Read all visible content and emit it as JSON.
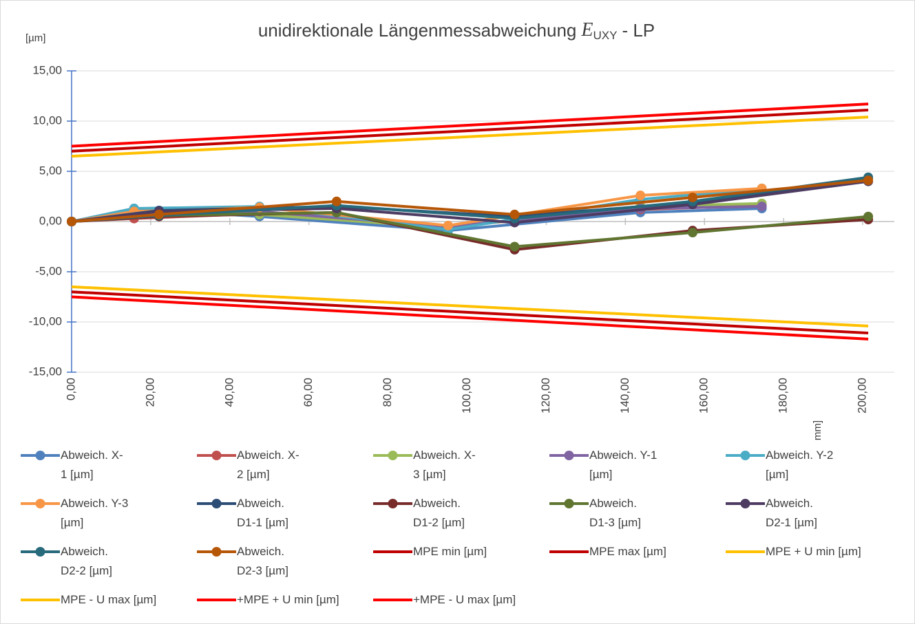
{
  "chart_data": {
    "type": "line",
    "title": "unidirektionale Längenmessabweichung",
    "title_symbol": "E",
    "title_subscript": "UXY",
    "title_suffix": "- LP",
    "y_unit_label": "[µm]",
    "x_unit_label": "[mm]",
    "xlim": [
      0,
      208
    ],
    "xticks": [
      {
        "value": 0,
        "label": "0,00"
      },
      {
        "value": 20,
        "label": "20,00"
      },
      {
        "value": 40,
        "label": "40,00"
      },
      {
        "value": 60,
        "label": "60,00"
      },
      {
        "value": 80,
        "label": "80,00"
      },
      {
        "value": 100,
        "label": "100,00"
      },
      {
        "value": 120,
        "label": "120,00"
      },
      {
        "value": 140,
        "label": "140,00"
      },
      {
        "value": 160,
        "label": "160,00"
      },
      {
        "value": 180,
        "label": "180,00"
      },
      {
        "value": 200,
        "label": "200,00"
      }
    ],
    "ylim": [
      -15,
      15
    ],
    "yticks": [
      {
        "value": -15,
        "label": "-15,00"
      },
      {
        "value": -10,
        "label": "-10,00"
      },
      {
        "value": -5,
        "label": "-5,00"
      },
      {
        "value": 0,
        "label": "0,00"
      },
      {
        "value": 5,
        "label": "5,00"
      },
      {
        "value": 10,
        "label": "10,00"
      },
      {
        "value": 15,
        "label": "15,00"
      }
    ],
    "grid": true,
    "legend": "bottom",
    "series": [
      {
        "name": "Abweich. X-1 [µm]",
        "color": "#4f81bd",
        "marker": true,
        "x": [
          0,
          15.8,
          47.5,
          95.2,
          143.8,
          174.5
        ],
        "values": [
          0,
          1.3,
          0.5,
          -0.9,
          0.9,
          1.3
        ]
      },
      {
        "name": "Abweich. X-2 [µm]",
        "color": "#c0504d",
        "marker": true,
        "x": [
          0,
          15.8,
          47.5,
          95.2,
          143.8,
          174.5
        ],
        "values": [
          0,
          0.3,
          0.8,
          -0.5,
          1.2,
          1.6
        ]
      },
      {
        "name": "Abweich. X-3 [µm]",
        "color": "#9bbb59",
        "marker": true,
        "x": [
          0,
          15.8,
          47.5,
          95.2,
          143.8,
          174.5
        ],
        "values": [
          0,
          1.0,
          0.7,
          -0.6,
          1.5,
          1.8
        ]
      },
      {
        "name": "Abweich. Y-1 [µm]",
        "color": "#8064a2",
        "marker": true,
        "x": [
          0,
          15.8,
          47.5,
          95.2,
          143.8,
          174.5
        ],
        "values": [
          0,
          1.1,
          1.0,
          -0.5,
          1.3,
          1.5
        ]
      },
      {
        "name": "Abweich. Y-2 [µm]",
        "color": "#4bacc6",
        "marker": true,
        "x": [
          0,
          15.8,
          47.5,
          95.2,
          143.8,
          174.5
        ],
        "values": [
          0,
          1.3,
          1.5,
          -0.8,
          2.2,
          3.3
        ]
      },
      {
        "name": "Abweich. Y-3 [µm]",
        "color": "#f79646",
        "marker": true,
        "x": [
          0,
          15.8,
          47.5,
          95.2,
          143.8,
          174.5
        ],
        "values": [
          0,
          1.0,
          1.4,
          -0.4,
          2.6,
          3.3
        ]
      },
      {
        "name": "Abweich. D1-1 [µm]",
        "color": "#2c4d75",
        "marker": true,
        "x": [
          0,
          22.1,
          67,
          112,
          157,
          201.4
        ],
        "values": [
          0,
          1.1,
          1.5,
          0.5,
          1.9,
          4.2
        ]
      },
      {
        "name": "Abweich. D1-2 [µm]",
        "color": "#772c2a",
        "marker": true,
        "x": [
          0,
          22.1,
          67,
          112,
          157,
          201.4
        ],
        "values": [
          0,
          0.5,
          0.9,
          -2.8,
          -0.9,
          0.2
        ]
      },
      {
        "name": "Abweich. D1-3 [µm]",
        "color": "#5f7530",
        "marker": true,
        "x": [
          0,
          22.1,
          67,
          112,
          157,
          201.4
        ],
        "values": [
          0,
          0.6,
          0.9,
          -2.5,
          -1.1,
          0.5
        ]
      },
      {
        "name": "Abweich. D2-1 [µm]",
        "color": "#4d3b62",
        "marker": true,
        "x": [
          0,
          22.1,
          67,
          112,
          157,
          201.4
        ],
        "values": [
          0,
          1.0,
          1.3,
          -0.1,
          1.7,
          4.0
        ]
      },
      {
        "name": "Abweich. D2-2 [µm]",
        "color": "#276a7c",
        "marker": true,
        "x": [
          0,
          22.1,
          67,
          112,
          157,
          201.4
        ],
        "values": [
          0,
          0.6,
          1.6,
          0.3,
          2.0,
          4.4
        ]
      },
      {
        "name": "Abweich. D2-3 [µm]",
        "color": "#b65708",
        "marker": true,
        "x": [
          0,
          22.1,
          67,
          112,
          157,
          201.4
        ],
        "values": [
          0,
          0.7,
          2.0,
          0.7,
          2.4,
          4.1
        ]
      },
      {
        "name": "MPE min [µm]",
        "color": "#c00000",
        "marker": false,
        "x": [
          0,
          201.4
        ],
        "values": [
          -7.0,
          -11.1
        ]
      },
      {
        "name": "MPE max [µm]",
        "color": "#c00000",
        "marker": false,
        "x": [
          0,
          201.4
        ],
        "values": [
          7.0,
          11.1
        ]
      },
      {
        "name": "MPE + U min [µm]",
        "color": "#ffc000",
        "marker": false,
        "x": [
          0,
          201.4
        ],
        "values": [
          -6.5,
          -10.4
        ]
      },
      {
        "name": "MPE - U max [µm]",
        "color": "#ffc000",
        "marker": false,
        "x": [
          0,
          201.4
        ],
        "values": [
          6.5,
          10.4
        ]
      },
      {
        "name": "+MPE + U min [µm]",
        "color": "#ff0000",
        "marker": false,
        "x": [
          0,
          201.4
        ],
        "values": [
          -7.5,
          -11.7
        ]
      },
      {
        "name": "+MPE - U max [µm]",
        "color": "#ff0000",
        "marker": false,
        "x": [
          0,
          201.4
        ],
        "values": [
          7.5,
          11.7
        ]
      }
    ]
  }
}
